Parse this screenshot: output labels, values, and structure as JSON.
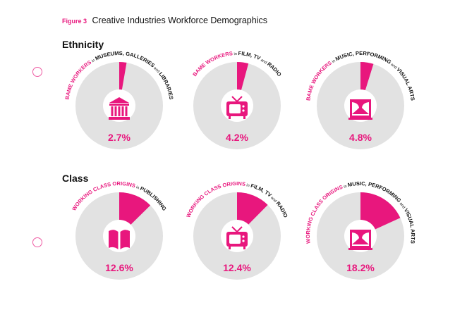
{
  "header": {
    "figure_label": "Figure 3",
    "title": "Creative Industries Workforce Demographics"
  },
  "sections": [
    {
      "title": "Ethnicity"
    },
    {
      "title": "Class"
    }
  ],
  "colors": {
    "accent": "#e8177d",
    "base": "#e2e2e2",
    "text": "#111111",
    "marker": "#ee5aa2"
  },
  "chart_data": [
    {
      "type": "pie",
      "group": "Ethnicity",
      "icon": "museum-icon",
      "value": 2.7,
      "value_label": "2.7%",
      "label_parts": [
        {
          "text": "BAME WORKERS",
          "style": "accent"
        },
        {
          "text": " in ",
          "style": "small"
        },
        {
          "text": "MUSEUMS, GALLERIES",
          "style": "bold"
        },
        {
          "text": " and ",
          "style": "small"
        },
        {
          "text": "LIBRARIES",
          "style": "bold"
        }
      ]
    },
    {
      "type": "pie",
      "group": "Ethnicity",
      "icon": "tv-icon",
      "value": 4.2,
      "value_label": "4.2%",
      "label_parts": [
        {
          "text": "BAME WORKERS",
          "style": "accent"
        },
        {
          "text": " in ",
          "style": "small"
        },
        {
          "text": "FILM, TV",
          "style": "bold"
        },
        {
          "text": " and ",
          "style": "small"
        },
        {
          "text": "RADIO",
          "style": "bold"
        }
      ]
    },
    {
      "type": "pie",
      "group": "Ethnicity",
      "icon": "theatre-stage-icon",
      "value": 4.8,
      "value_label": "4.8%",
      "label_parts": [
        {
          "text": "BAME WORKERS",
          "style": "accent"
        },
        {
          "text": " in ",
          "style": "small"
        },
        {
          "text": "MUSIC, PERFORMING",
          "style": "bold"
        },
        {
          "text": " and ",
          "style": "small"
        },
        {
          "text": "VISUAL ARTS",
          "style": "bold"
        }
      ]
    },
    {
      "type": "pie",
      "group": "Class",
      "icon": "book-icon",
      "value": 12.6,
      "value_label": "12.6%",
      "label_parts": [
        {
          "text": "WORKING CLASS ORIGINS",
          "style": "accent"
        },
        {
          "text": " in ",
          "style": "small"
        },
        {
          "text": "PUBLISHING",
          "style": "bold"
        }
      ]
    },
    {
      "type": "pie",
      "group": "Class",
      "icon": "tv-icon",
      "value": 12.4,
      "value_label": "12.4%",
      "label_parts": [
        {
          "text": "WORKING CLASS ORIGINS",
          "style": "accent"
        },
        {
          "text": " in ",
          "style": "small"
        },
        {
          "text": "FILM, TV",
          "style": "bold"
        },
        {
          "text": " and ",
          "style": "small"
        },
        {
          "text": "RADIO",
          "style": "bold"
        }
      ]
    },
    {
      "type": "pie",
      "group": "Class",
      "icon": "theatre-stage-icon",
      "value": 18.2,
      "value_label": "18.2%",
      "label_parts": [
        {
          "text": "WORKING CLASS ORIGINS",
          "style": "accent"
        },
        {
          "text": " in ",
          "style": "small"
        },
        {
          "text": "MUSIC, PERFORMING",
          "style": "bold"
        },
        {
          "text": " and ",
          "style": "small"
        },
        {
          "text": "VISUAL ARTS",
          "style": "bold"
        }
      ]
    }
  ]
}
